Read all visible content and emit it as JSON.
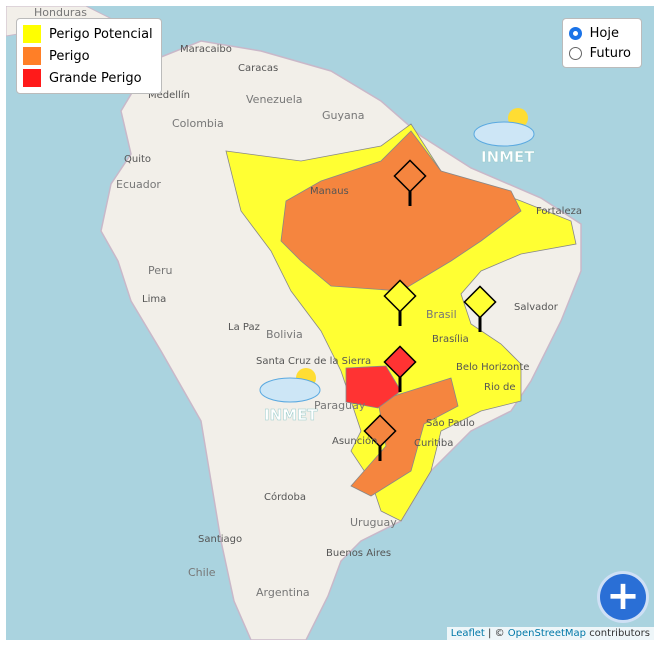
{
  "legend": [
    {
      "label": "Perigo Potencial",
      "color": "#ffff00"
    },
    {
      "label": "Perigo",
      "color": "#ff7f27"
    },
    {
      "label": "Grande Perigo",
      "color": "#ff1a1a"
    }
  ],
  "period_options": [
    {
      "label": "Hoje",
      "selected": true
    },
    {
      "label": "Futuro",
      "selected": false
    }
  ],
  "map_labels": [
    "Honduras",
    "Maracaibo",
    "Caracas",
    "Medellín",
    "Venezuela",
    "Colombia",
    "Guyana",
    "Quito",
    "Ecuador",
    "Manaus",
    "Fortaleza",
    "Peru",
    "Lima",
    "La Paz",
    "Bolivia",
    "Brasil",
    "Brasília",
    "Salvador",
    "Belo Horizonte",
    "Rio de",
    "Santa Cruz de la Sierra",
    "Paraguay",
    "Asunción",
    "São Paulo",
    "Curitiba",
    "Córdoba",
    "Uruguay",
    "Santiago",
    "Buenos Aires",
    "Chile",
    "Argentina"
  ],
  "logos": [
    "INMET",
    "INMET"
  ],
  "attribution": {
    "leaflet": "Leaflet",
    "separator": "| ©",
    "osm": "OpenStreetMap",
    "suffix": "contributors"
  }
}
